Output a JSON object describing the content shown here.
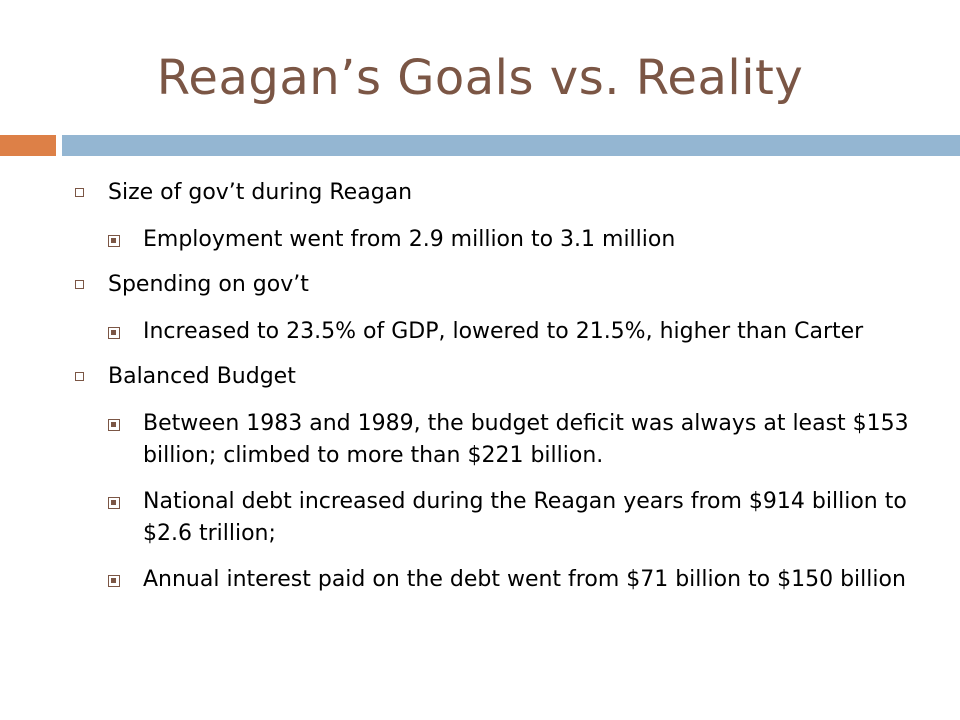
{
  "slide": {
    "title": "Reagan’s Goals vs. Reality",
    "accent_colors": {
      "title": "#7b5645",
      "left_bar": "#dd8047",
      "right_bar": "#94b6d2"
    },
    "items": [
      {
        "text": "Size of gov’t during Reagan",
        "sub": [
          "Employment went from 2.9 million to 3.1 million"
        ]
      },
      {
        "text": "Spending on gov’t",
        "sub": [
          "Increased to 23.5% of GDP, lowered to 21.5%, higher than Carter"
        ]
      },
      {
        "text": "Balanced Budget",
        "sub": [
          "Between 1983 and 1989, the budget deficit was always at least $153 billion; climbed to more than $221 billion.",
          "National debt increased during the Reagan years from $914 billion to $2.6 trillion;",
          "Annual interest paid on the debt went from $71 billion to $150 billion"
        ]
      }
    ]
  }
}
